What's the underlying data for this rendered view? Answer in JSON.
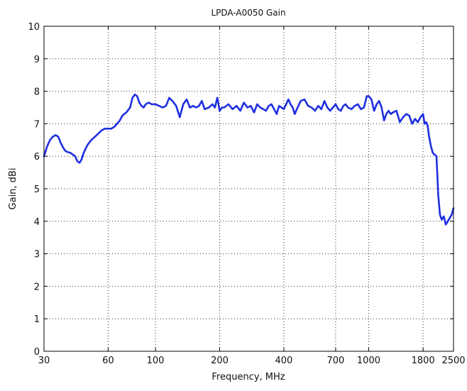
{
  "chart_data": {
    "type": "line",
    "title": "LPDA-A0050 Gain",
    "xlabel": "Frequency, MHz",
    "ylabel": "Gain, dBi",
    "xscale": "log",
    "xlim": [
      30,
      2500
    ],
    "ylim": [
      0,
      10
    ],
    "grid": true,
    "grid_style": "dotted",
    "x_ticks": [
      30,
      60,
      100,
      200,
      400,
      700,
      1000,
      1800,
      2500
    ],
    "x_tick_labels": [
      "30",
      "60",
      "100",
      "200",
      "400",
      "700",
      "1000",
      "1800",
      "2500"
    ],
    "y_ticks": [
      0,
      1,
      2,
      3,
      4,
      5,
      6,
      7,
      8,
      9,
      10
    ],
    "y_tick_labels": [
      "0",
      "1",
      "2",
      "3",
      "4",
      "5",
      "6",
      "7",
      "8",
      "9",
      "10"
    ],
    "series": [
      {
        "color": "#1f2fe0",
        "x": [
          30,
          31,
          32,
          33,
          34,
          35,
          36,
          37,
          38,
          40,
          42,
          43,
          44,
          45,
          46,
          48,
          50,
          52,
          54,
          56,
          58,
          60,
          62,
          64,
          66,
          68,
          70,
          73,
          76,
          78,
          80,
          82,
          84,
          86,
          88,
          90,
          93,
          96,
          100,
          104,
          108,
          112,
          116,
          120,
          125,
          130,
          135,
          140,
          145,
          150,
          155,
          160,
          165,
          170,
          178,
          185,
          190,
          195,
          200,
          205,
          210,
          220,
          230,
          240,
          250,
          260,
          270,
          280,
          290,
          300,
          310,
          320,
          330,
          340,
          350,
          360,
          370,
          380,
          390,
          400,
          410,
          420,
          430,
          440,
          450,
          460,
          480,
          500,
          520,
          540,
          560,
          580,
          600,
          620,
          640,
          660,
          680,
          700,
          720,
          740,
          760,
          780,
          800,
          830,
          860,
          890,
          920,
          950,
          980,
          1000,
          1030,
          1060,
          1090,
          1120,
          1150,
          1180,
          1210,
          1240,
          1270,
          1300,
          1350,
          1400,
          1450,
          1500,
          1550,
          1600,
          1650,
          1700,
          1750,
          1800,
          1830,
          1860,
          1890,
          1920,
          1960,
          2000,
          2040,
          2080,
          2120,
          2160,
          2200,
          2250,
          2300,
          2350,
          2400,
          2450,
          2500
        ],
        "y": [
          6.0,
          6.3,
          6.5,
          6.6,
          6.65,
          6.6,
          6.4,
          6.25,
          6.15,
          6.1,
          6.0,
          5.85,
          5.8,
          5.9,
          6.1,
          6.35,
          6.5,
          6.6,
          6.7,
          6.8,
          6.85,
          6.85,
          6.85,
          6.9,
          7.0,
          7.1,
          7.25,
          7.35,
          7.5,
          7.8,
          7.9,
          7.85,
          7.65,
          7.55,
          7.5,
          7.6,
          7.65,
          7.6,
          7.6,
          7.55,
          7.5,
          7.55,
          7.8,
          7.7,
          7.55,
          7.2,
          7.6,
          7.75,
          7.5,
          7.55,
          7.5,
          7.55,
          7.7,
          7.45,
          7.5,
          7.6,
          7.5,
          7.8,
          7.4,
          7.5,
          7.5,
          7.6,
          7.45,
          7.55,
          7.4,
          7.65,
          7.5,
          7.55,
          7.35,
          7.6,
          7.5,
          7.45,
          7.4,
          7.55,
          7.6,
          7.45,
          7.3,
          7.55,
          7.5,
          7.45,
          7.6,
          7.75,
          7.6,
          7.5,
          7.3,
          7.45,
          7.7,
          7.75,
          7.55,
          7.5,
          7.4,
          7.55,
          7.45,
          7.7,
          7.5,
          7.4,
          7.5,
          7.6,
          7.45,
          7.4,
          7.55,
          7.6,
          7.5,
          7.45,
          7.55,
          7.6,
          7.45,
          7.5,
          7.85,
          7.85,
          7.75,
          7.4,
          7.6,
          7.7,
          7.5,
          7.1,
          7.3,
          7.4,
          7.3,
          7.35,
          7.4,
          7.05,
          7.2,
          7.3,
          7.25,
          7.0,
          7.15,
          7.05,
          7.2,
          7.3,
          7.0,
          7.05,
          6.95,
          6.6,
          6.3,
          6.1,
          6.05,
          6.0,
          4.8,
          4.2,
          4.05,
          4.15,
          3.9,
          4.0,
          4.1,
          4.2,
          4.4
        ]
      }
    ]
  }
}
